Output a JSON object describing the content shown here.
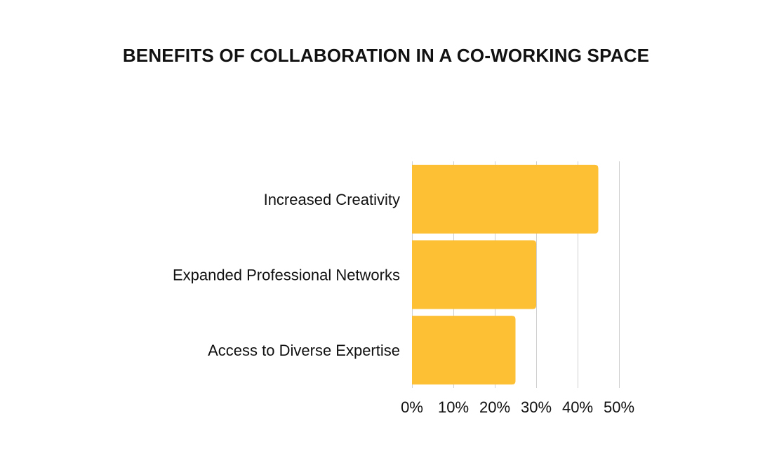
{
  "chart_data": {
    "type": "bar",
    "orientation": "horizontal",
    "title": "BENEFITS OF COLLABORATION IN A CO-WORKING SPACE",
    "categories": [
      "Increased Creativity",
      "Expanded Professional Networks",
      "Access to Diverse Expertise"
    ],
    "values": [
      45,
      30,
      25
    ],
    "value_unit": "%",
    "xlim": [
      0,
      50
    ],
    "x_ticks": [
      0,
      10,
      20,
      30,
      40,
      50
    ],
    "x_tick_labels": [
      "0%",
      "10%",
      "20%",
      "30%",
      "40%",
      "50%"
    ],
    "grid": true,
    "bar_color": "#FDBF34",
    "grid_color": "#CFCFCF",
    "legend": "none"
  }
}
